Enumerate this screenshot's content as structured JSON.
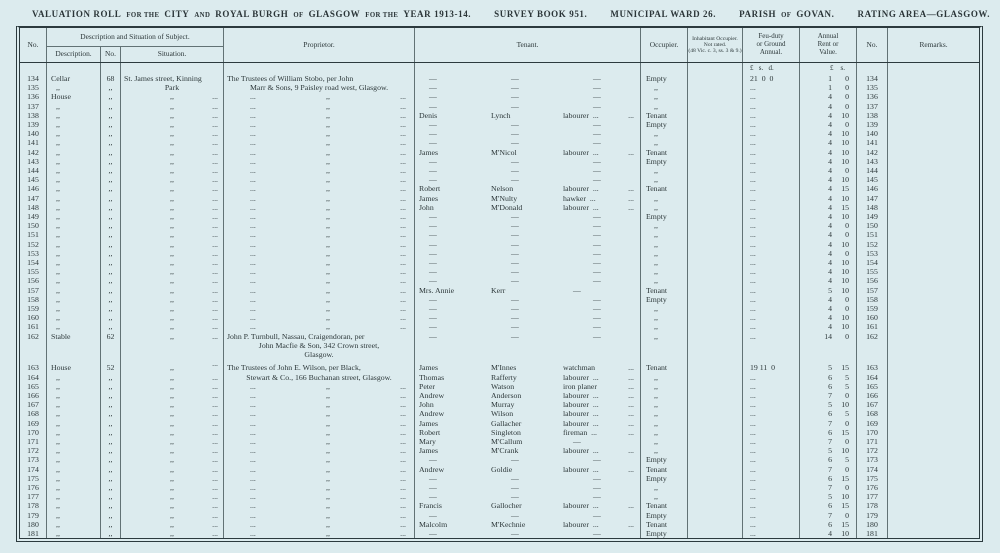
{
  "title_segments": [
    {
      "t": "VALUATION ROLL",
      "sm": false,
      "gap": false
    },
    {
      "t": "FOR THE",
      "sm": true,
      "gap": false
    },
    {
      "t": "CITY",
      "sm": false,
      "gap": false
    },
    {
      "t": "AND",
      "sm": true,
      "gap": false
    },
    {
      "t": "ROYAL BURGH",
      "sm": false,
      "gap": false
    },
    {
      "t": "OF",
      "sm": true,
      "gap": false
    },
    {
      "t": "GLASGOW",
      "sm": false,
      "gap": false
    },
    {
      "t": "FOR THE",
      "sm": true,
      "gap": false
    },
    {
      "t": "YEAR 1913-14.",
      "sm": false,
      "gap": false
    },
    {
      "t": "SURVEY BOOK 951.",
      "sm": false,
      "gap": true
    },
    {
      "t": "MUNICIPAL WARD 26.",
      "sm": false,
      "gap": true
    },
    {
      "t": "PARISH",
      "sm": false,
      "gap": true
    },
    {
      "t": "OF",
      "sm": true,
      "gap": false
    },
    {
      "t": "GOVAN.",
      "sm": false,
      "gap": false
    },
    {
      "t": "RATING AREA—GLASGOW.",
      "sm": false,
      "gap": true
    }
  ],
  "table_header": {
    "no": "No.",
    "group": "Description and Situation of Subject.",
    "description": "Description.",
    "street_no": "No.",
    "situation": "Situation.",
    "proprietor": "Proprietor.",
    "tenant": "Tenant.",
    "occupier": "Occupier.",
    "inhabitant": "Inhabitant Occupier.\nNot rated.\n(48 Vic. c. 3, ss. 3 & 9.)",
    "feu": "Feu-duty\nor Ground\nAnnual.",
    "rent": "Annual\nRent or\nValue.",
    "no2": "No.",
    "remarks": "Remarks.",
    "feu_currency": "£   s.   d.",
    "rent_currency": "£    s."
  },
  "rows": [
    {
      "n": "134",
      "d": "Cellar",
      "sn": "68",
      "s": "St. James street, Kinning",
      "p": "The Trustees of William Stobo, per John",
      "t": [
        "—",
        "—",
        "—",
        ""
      ],
      "oc": "Empty",
      "f": "21  0  0",
      "r": [
        "1",
        "0"
      ]
    },
    {
      "n": "135",
      "d": ",,",
      "sn": ",,",
      "s": "Park",
      "sa": "c",
      "p": "Marr & Sons, 9 Paisley road west, Glasgow.",
      "pa": "c",
      "t": [
        "—",
        "—",
        "—",
        ""
      ],
      "oc": ",,",
      "f": "...",
      "r": [
        "1",
        "0"
      ]
    },
    {
      "n": "136",
      "d": "House",
      "sn": ",,",
      "s": ",,",
      "p": ",,",
      "t": [
        "—",
        "—",
        "—",
        ""
      ],
      "oc": ",,",
      "f": "...",
      "r": [
        "4",
        "0"
      ]
    },
    {
      "n": "137",
      "d": ",,",
      "sn": ",,",
      "s": ",,",
      "p": ",,",
      "t": [
        "—",
        "—",
        "—",
        ""
      ],
      "oc": ",,",
      "f": "...",
      "r": [
        "4",
        "0"
      ]
    },
    {
      "n": "138",
      "d": ",,",
      "sn": ",,",
      "s": ",,",
      "p": ",,",
      "t": [
        "Denis",
        "Lynch",
        "labourer  ...",
        "..."
      ],
      "oc": "Tenant",
      "f": "...",
      "r": [
        "4",
        "10"
      ]
    },
    {
      "n": "139",
      "d": ",,",
      "sn": ",,",
      "s": ",,",
      "p": ",,",
      "t": [
        "—",
        "—",
        "—",
        ""
      ],
      "oc": "Empty",
      "f": "...",
      "r": [
        "4",
        "0"
      ]
    },
    {
      "n": "140",
      "d": ",,",
      "sn": ",,",
      "s": ",,",
      "p": ",,",
      "t": [
        "—",
        "—",
        "—",
        ""
      ],
      "oc": ",,",
      "f": "...",
      "r": [
        "4",
        "10"
      ]
    },
    {
      "n": "141",
      "d": ",,",
      "sn": ",,",
      "s": ",,",
      "p": ",,",
      "t": [
        "—",
        "—",
        "—",
        ""
      ],
      "oc": ",,",
      "f": "...",
      "r": [
        "4",
        "10"
      ]
    },
    {
      "n": "142",
      "d": ",,",
      "sn": ",,",
      "s": ",,",
      "p": ",,",
      "t": [
        "James",
        "M'Nicol",
        "labourer  ...",
        "..."
      ],
      "oc": "Tenant",
      "f": "...",
      "r": [
        "4",
        "10"
      ]
    },
    {
      "n": "143",
      "d": ",,",
      "sn": ",,",
      "s": ",,",
      "p": ",,",
      "t": [
        "—",
        "—",
        "—",
        ""
      ],
      "oc": "Empty",
      "f": "...",
      "r": [
        "4",
        "10"
      ]
    },
    {
      "n": "144",
      "d": ",,",
      "sn": ",,",
      "s": ",,",
      "p": ",,",
      "t": [
        "—",
        "—",
        "—",
        ""
      ],
      "oc": ",,",
      "f": "...",
      "r": [
        "4",
        "0"
      ]
    },
    {
      "n": "145",
      "d": ",,",
      "sn": ",,",
      "s": ",,",
      "p": ",,",
      "t": [
        "—",
        "—",
        "—",
        ""
      ],
      "oc": ",,",
      "f": "...",
      "r": [
        "4",
        "10"
      ]
    },
    {
      "n": "146",
      "d": ",,",
      "sn": ",,",
      "s": ",,",
      "p": ",,",
      "t": [
        "Robert",
        "Nelson",
        "labourer  ...",
        "..."
      ],
      "oc": "Tenant",
      "f": "...",
      "r": [
        "4",
        "15"
      ]
    },
    {
      "n": "147",
      "d": ",,",
      "sn": ",,",
      "s": ",,",
      "p": ",,",
      "t": [
        "James",
        "M'Nulty",
        "hawker  ...",
        "..."
      ],
      "oc": ",,",
      "f": "...",
      "r": [
        "4",
        "10"
      ]
    },
    {
      "n": "148",
      "d": ",,",
      "sn": ",,",
      "s": ",,",
      "p": ",,",
      "t": [
        "John",
        "M'Donald",
        "labourer  ...",
        "..."
      ],
      "oc": ",,",
      "f": "...",
      "r": [
        "4",
        "15"
      ]
    },
    {
      "n": "149",
      "d": ",,",
      "sn": ",,",
      "s": ",,",
      "p": ",,",
      "t": [
        "—",
        "—",
        "—",
        ""
      ],
      "oc": "Empty",
      "f": "...",
      "r": [
        "4",
        "10"
      ]
    },
    {
      "n": "150",
      "d": ",,",
      "sn": ",,",
      "s": ",,",
      "p": ",,",
      "t": [
        "—",
        "—",
        "—",
        ""
      ],
      "oc": ",,",
      "f": "...",
      "r": [
        "4",
        "0"
      ]
    },
    {
      "n": "151",
      "d": ",,",
      "sn": ",,",
      "s": ",,",
      "p": ",,",
      "t": [
        "—",
        "—",
        "—",
        ""
      ],
      "oc": ",,",
      "f": "...",
      "r": [
        "4",
        "0"
      ]
    },
    {
      "n": "152",
      "d": ",,",
      "sn": ",,",
      "s": ",,",
      "p": ",,",
      "t": [
        "—",
        "—",
        "—",
        ""
      ],
      "oc": ",,",
      "f": "...",
      "r": [
        "4",
        "10"
      ]
    },
    {
      "n": "153",
      "d": ",,",
      "sn": ",,",
      "s": ",,",
      "p": ",,",
      "t": [
        "—",
        "—",
        "—",
        ""
      ],
      "oc": ",,",
      "f": "...",
      "r": [
        "4",
        "0"
      ]
    },
    {
      "n": "154",
      "d": ",,",
      "sn": ",,",
      "s": ",,",
      "p": ",,",
      "t": [
        "—",
        "—",
        "—",
        ""
      ],
      "oc": ",,",
      "f": "...",
      "r": [
        "4",
        "10"
      ]
    },
    {
      "n": "155",
      "d": ",,",
      "sn": ",,",
      "s": ",,",
      "p": ",,",
      "t": [
        "—",
        "—",
        "—",
        ""
      ],
      "oc": ",,",
      "f": "...",
      "r": [
        "4",
        "10"
      ]
    },
    {
      "n": "156",
      "d": ",,",
      "sn": ",,",
      "s": ",,",
      "p": ",,",
      "t": [
        "—",
        "—",
        "—",
        ""
      ],
      "oc": ",,",
      "f": "...",
      "r": [
        "4",
        "10"
      ]
    },
    {
      "n": "157",
      "d": ",,",
      "sn": ",,",
      "s": ",,",
      "p": ",,",
      "t": [
        "Mrs. Annie",
        "Kerr",
        "—",
        ""
      ],
      "oc": "Tenant",
      "f": "...",
      "r": [
        "5",
        "10"
      ]
    },
    {
      "n": "158",
      "d": ",,",
      "sn": ",,",
      "s": ",,",
      "p": ",,",
      "t": [
        "—",
        "—",
        "—",
        ""
      ],
      "oc": "Empty",
      "f": "...",
      "r": [
        "4",
        "0"
      ]
    },
    {
      "n": "159",
      "d": ",,",
      "sn": ",,",
      "s": ",,",
      "p": ",,",
      "t": [
        "—",
        "—",
        "—",
        ""
      ],
      "oc": ",,",
      "f": "...",
      "r": [
        "4",
        "0"
      ]
    },
    {
      "n": "160",
      "d": ",,",
      "sn": ",,",
      "s": ",,",
      "p": ",,",
      "t": [
        "—",
        "—",
        "—",
        ""
      ],
      "oc": ",,",
      "f": "...",
      "r": [
        "4",
        "10"
      ]
    },
    {
      "n": "161",
      "d": ",,",
      "sn": ",,",
      "s": ",,",
      "p": ",,",
      "t": [
        "—",
        "—",
        "—",
        ""
      ],
      "oc": ",,",
      "f": "...",
      "r": [
        "4",
        "10"
      ]
    },
    {
      "n": "162",
      "d": "Stable",
      "sn": "62",
      "s": ",,",
      "p": [
        "John P. Turnbull, Nassau, Craigendoran, per",
        "John Macfie & Son, 342 Crown street,",
        "Glasgow."
      ],
      "t": [
        "—",
        "—",
        "—",
        ""
      ],
      "oc": ",,",
      "f": "...",
      "r": [
        "14",
        "0"
      ]
    },
    {
      "n": "163",
      "d": "House",
      "sn": "52",
      "s": ",,",
      "p": "The Trustees of John E. Wilson, per Black,",
      "t": [
        "James",
        "M'Innes",
        "watchman",
        "..."
      ],
      "oc": "Tenant",
      "f": "19 11  0",
      "r": [
        "5",
        "15"
      ],
      "gap": 1
    },
    {
      "n": "164",
      "d": ",,",
      "sn": ",,",
      "s": ",,",
      "p": "Stewart & Co., 166 Buchanan street, Glasgow.",
      "pa": "c",
      "t": [
        "Thomas",
        "Rafferty",
        "labourer  ...",
        "..."
      ],
      "oc": ",,",
      "f": "...",
      "r": [
        "6",
        "5"
      ]
    },
    {
      "n": "165",
      "d": ",,",
      "sn": ",,",
      "s": ",,",
      "p": ",,",
      "t": [
        "Peter",
        "Watson",
        "iron planer",
        "..."
      ],
      "oc": ",,",
      "f": "...",
      "r": [
        "6",
        "5"
      ]
    },
    {
      "n": "166",
      "d": ",,",
      "sn": ",,",
      "s": ",,",
      "p": ",,",
      "t": [
        "Andrew",
        "Anderson",
        "labourer  ...",
        "..."
      ],
      "oc": ",,",
      "f": "...",
      "r": [
        "7",
        "0"
      ]
    },
    {
      "n": "167",
      "d": ",,",
      "sn": ",,",
      "s": ",,",
      "p": ",,",
      "t": [
        "John",
        "Murray",
        "labourer  ...",
        "..."
      ],
      "oc": ",,",
      "f": "...",
      "r": [
        "5",
        "10"
      ]
    },
    {
      "n": "168",
      "d": ",,",
      "sn": ",,",
      "s": ",,",
      "p": ",,",
      "t": [
        "Andrew",
        "Wilson",
        "labourer  ...",
        "..."
      ],
      "oc": ",,",
      "f": "...",
      "r": [
        "6",
        "5"
      ]
    },
    {
      "n": "169",
      "d": ",,",
      "sn": ",,",
      "s": ",,",
      "p": ",,",
      "t": [
        "James",
        "Gallacher",
        "labourer  ...",
        "..."
      ],
      "oc": ",,",
      "f": "...",
      "r": [
        "7",
        "0"
      ]
    },
    {
      "n": "170",
      "d": ",,",
      "sn": ",,",
      "s": ",,",
      "p": ",,",
      "t": [
        "Robert",
        "Singleton",
        "fireman  ...",
        "..."
      ],
      "oc": ",,",
      "f": "...",
      "r": [
        "6",
        "15"
      ]
    },
    {
      "n": "171",
      "d": ",,",
      "sn": ",,",
      "s": ",,",
      "p": ",,",
      "t": [
        "Mary",
        "M'Callum",
        "—",
        ""
      ],
      "oc": ",,",
      "f": "...",
      "r": [
        "7",
        "0"
      ]
    },
    {
      "n": "172",
      "d": ",,",
      "sn": ",,",
      "s": ",,",
      "p": ",,",
      "t": [
        "James",
        "M'Crank",
        "labourer  ...",
        "..."
      ],
      "oc": ",,",
      "f": "...",
      "r": [
        "5",
        "10"
      ]
    },
    {
      "n": "173",
      "d": ",,",
      "sn": ",,",
      "s": ",,",
      "p": ",,",
      "t": [
        "—",
        "—",
        "—",
        ""
      ],
      "oc": "Empty",
      "f": "...",
      "r": [
        "6",
        "5"
      ]
    },
    {
      "n": "174",
      "d": ",,",
      "sn": ",,",
      "s": ",,",
      "p": ",,",
      "t": [
        "Andrew",
        "Goldie",
        "labourer  ...",
        "..."
      ],
      "oc": "Tenant",
      "f": "...",
      "r": [
        "7",
        "0"
      ]
    },
    {
      "n": "175",
      "d": ",,",
      "sn": ",,",
      "s": ",,",
      "p": ",,",
      "t": [
        "—",
        "—",
        "—",
        ""
      ],
      "oc": "Empty",
      "f": "...",
      "r": [
        "6",
        "15"
      ]
    },
    {
      "n": "176",
      "d": ",,",
      "sn": ",,",
      "s": ",,",
      "p": ",,",
      "t": [
        "—",
        "—",
        "—",
        ""
      ],
      "oc": ",,",
      "f": "...",
      "r": [
        "7",
        "0"
      ]
    },
    {
      "n": "177",
      "d": ",,",
      "sn": ",,",
      "s": ",,",
      "p": ",,",
      "t": [
        "—",
        "—",
        "—",
        ""
      ],
      "oc": ",,",
      "f": "...",
      "r": [
        "5",
        "10"
      ]
    },
    {
      "n": "178",
      "d": ",,",
      "sn": ",,",
      "s": ",,",
      "p": ",,",
      "t": [
        "Francis",
        "Gallocher",
        "labourer  ...",
        "..."
      ],
      "oc": "Tenant",
      "f": "...",
      "r": [
        "6",
        "15"
      ]
    },
    {
      "n": "179",
      "d": ",,",
      "sn": ",,",
      "s": ",,",
      "p": ",,",
      "t": [
        "—",
        "—",
        "—",
        ""
      ],
      "oc": "Empty",
      "f": "...",
      "r": [
        "7",
        "0"
      ]
    },
    {
      "n": "180",
      "d": ",,",
      "sn": ",,",
      "s": ",,",
      "p": ",,",
      "t": [
        "Malcolm",
        "M'Kechnie",
        "labourer  ...",
        "..."
      ],
      "oc": "Tenant",
      "f": "...",
      "r": [
        "6",
        "15"
      ]
    },
    {
      "n": "181",
      "d": ",,",
      "sn": ",,",
      "s": ",,",
      "p": ",,",
      "t": [
        "—",
        "—",
        "—",
        ""
      ],
      "oc": "Empty",
      "f": "...",
      "r": [
        "4",
        "10"
      ]
    }
  ]
}
